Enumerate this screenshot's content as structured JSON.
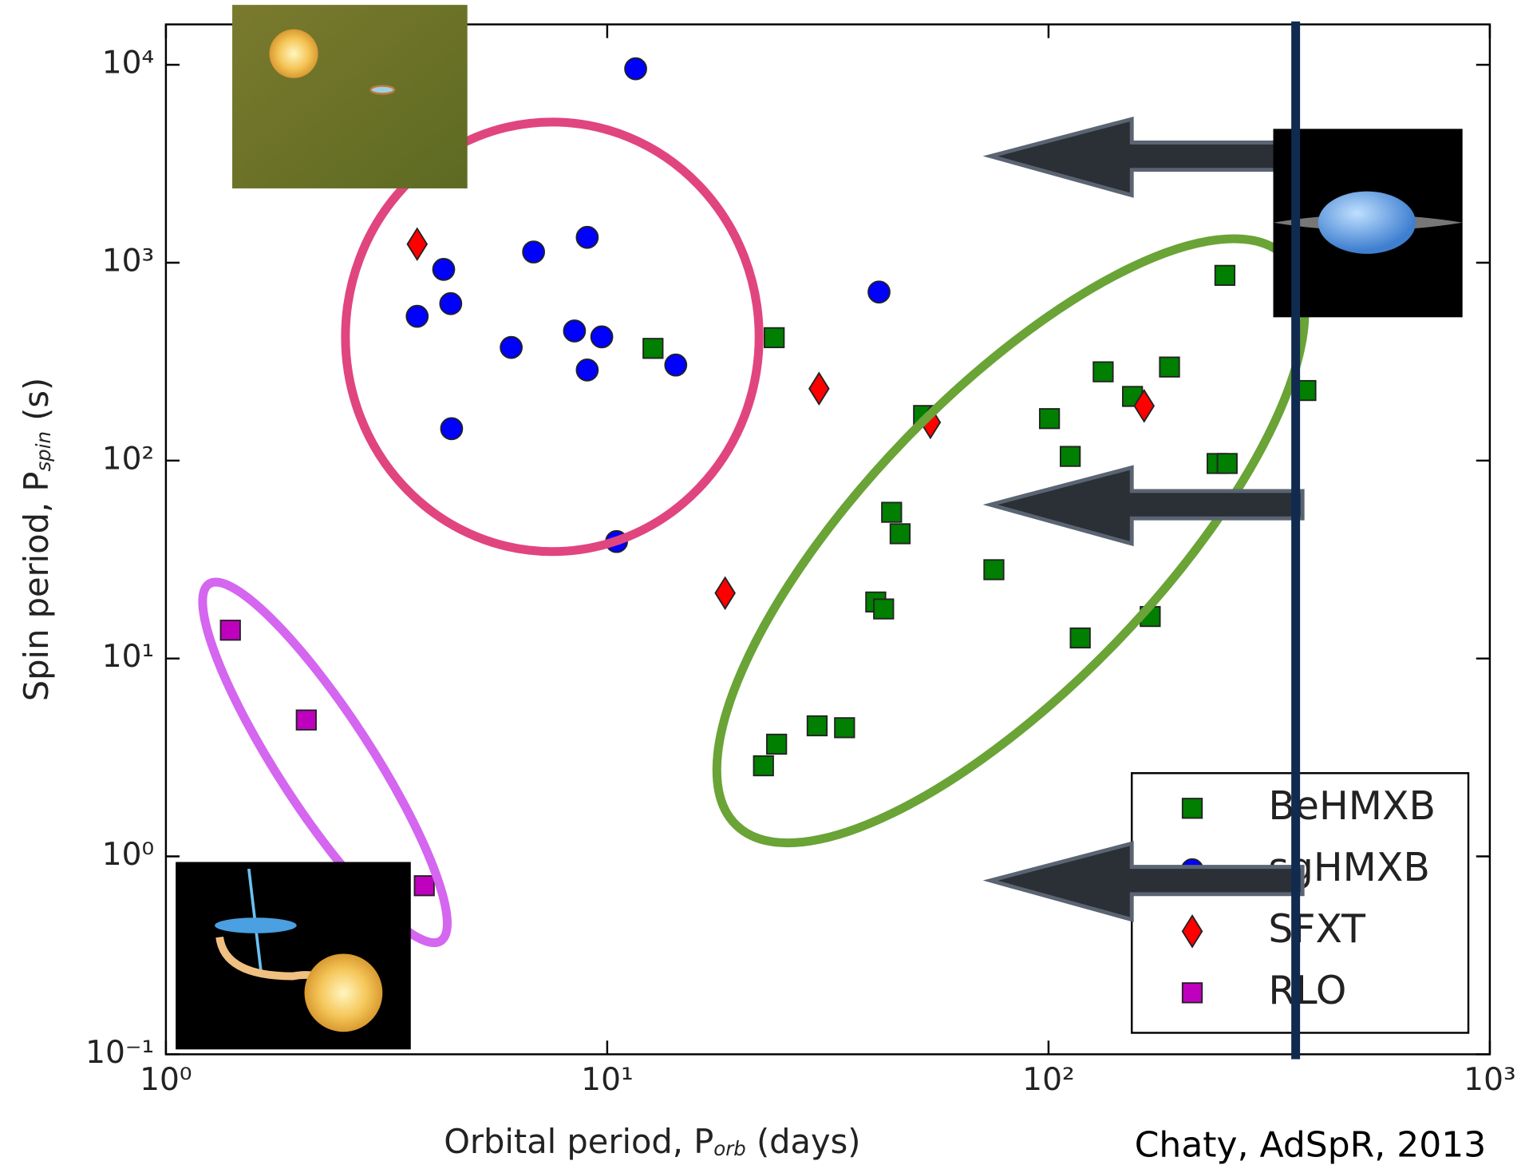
{
  "chart_data": {
    "type": "scatter",
    "xlabel": [
      "Orbital period, P",
      "orb",
      " (days)"
    ],
    "ylabel": [
      "Spin period, P",
      "spin",
      " (s)"
    ],
    "credit": "Chaty, AdSpR, 2013",
    "xscale": "log",
    "yscale": "log",
    "xlim": [
      1,
      1000
    ],
    "ylim": [
      0.1,
      16000
    ],
    "xticks": [
      {
        "value": 1,
        "label": "10⁰"
      },
      {
        "value": 10,
        "label": "10¹"
      },
      {
        "value": 100,
        "label": "10²"
      },
      {
        "value": 1000,
        "label": "10³"
      }
    ],
    "yticks": [
      {
        "value": 0.1,
        "label": "10⁻¹"
      },
      {
        "value": 1,
        "label": "10⁰"
      },
      {
        "value": 10,
        "label": "10¹"
      },
      {
        "value": 100,
        "label": "10²"
      },
      {
        "value": 1000,
        "label": "10³"
      },
      {
        "value": 10000,
        "label": "10⁴"
      }
    ],
    "legend": "lower right",
    "series": [
      {
        "name": "BeHMXB",
        "color": "#007f00",
        "marker": "square",
        "x": [
          251,
          23.9,
          12.7,
          383,
          133,
          188,
          155,
          52.1,
          100.5,
          112,
          241,
          254,
          44.1,
          46.1,
          75.2,
          40.6,
          42.3,
          170,
          118,
          29.9,
          34.5,
          24.2,
          22.6
        ],
        "values": [
          863,
          418,
          369,
          226,
          281,
          297,
          211,
          169,
          163,
          105,
          96.7,
          96.7,
          54.8,
          42.7,
          28.1,
          19.3,
          17.8,
          16.3,
          12.7,
          4.57,
          4.47,
          3.69,
          2.87
        ]
      },
      {
        "name": "sgHMXB",
        "color": "#0000ff",
        "marker": "circle",
        "x": [
          11.6,
          4.26,
          3.71,
          4.42,
          6.81,
          9.01,
          6.06,
          8.43,
          9.72,
          9.01,
          14.3,
          4.44,
          10.5,
          41.3
        ],
        "values": [
          9550,
          925,
          536,
          621,
          1133,
          1343,
          373,
          452,
          422,
          287,
          304,
          145,
          39,
          711
        ]
      },
      {
        "name": "SFXT",
        "color": "#ff0000",
        "marker": "diamond",
        "x": [
          3.71,
          30.2,
          54.0,
          164.7,
          18.5
        ],
        "values": [
          1241,
          231,
          156,
          189,
          21.4
        ]
      },
      {
        "name": "RLO",
        "color": "#bf00bf",
        "marker": "square",
        "x": [
          1.4,
          2.08,
          3.85
        ],
        "values": [
          13.9,
          4.89,
          0.711
        ]
      }
    ]
  }
}
